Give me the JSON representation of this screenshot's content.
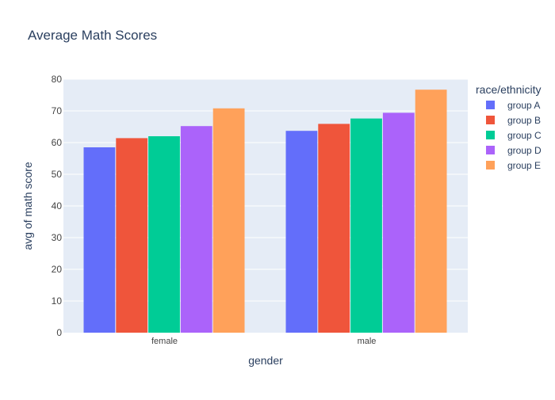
{
  "chart_data": {
    "type": "bar",
    "title": "Average Math Scores",
    "xlabel": "gender",
    "ylabel": "avg of math score",
    "categories": [
      "female",
      "male"
    ],
    "ylim": [
      0,
      80
    ],
    "yticks": [
      0,
      10,
      20,
      30,
      40,
      50,
      60,
      70,
      80
    ],
    "grid": true,
    "legend_title": "race/ethnicity",
    "legend_position": "right",
    "series": [
      {
        "name": "group A",
        "values": [
          58.5,
          63.7
        ],
        "color": "#636efa"
      },
      {
        "name": "group B",
        "values": [
          61.4,
          65.9
        ],
        "color": "#ef553b"
      },
      {
        "name": "group C",
        "values": [
          62.0,
          67.6
        ],
        "color": "#00cc96"
      },
      {
        "name": "group D",
        "values": [
          65.2,
          69.4
        ],
        "color": "#ab63fa"
      },
      {
        "name": "group E",
        "values": [
          70.8,
          76.7
        ],
        "color": "#ffa15a"
      }
    ],
    "colors": {
      "plot_background": "#e5ecf6",
      "grid": "#ffffff",
      "text": "#2a3f5f",
      "tick_text": "#444444"
    }
  }
}
